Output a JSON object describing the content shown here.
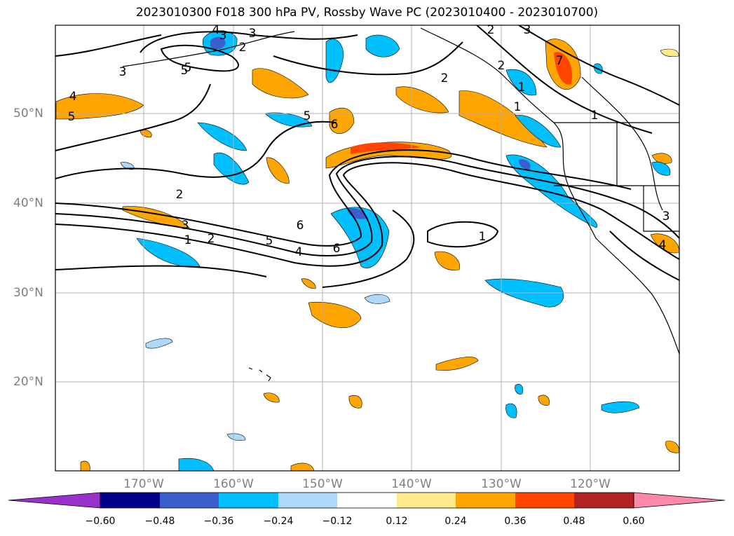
{
  "title": "2023010300 F018 300 hPa PV, Rossby Wave PC (2023010400 - 2023010700)",
  "map": {
    "lat_labels": [
      "50°N",
      "40°N",
      "30°N",
      "20°N"
    ],
    "lon_labels": [
      "170°W",
      "160°W",
      "150°W",
      "140°W",
      "130°W",
      "120°W"
    ],
    "contour_labels": [
      "2",
      "3",
      "4",
      "5",
      "5",
      "6",
      "2",
      "2",
      "1",
      "5",
      "3",
      "1",
      "2",
      "5",
      "4",
      "6",
      "6",
      "2",
      "1",
      "3",
      "3",
      "4",
      "5",
      "3",
      "4",
      "1",
      "2",
      "7",
      "1",
      "3"
    ]
  },
  "colorbar": {
    "colors": [
      "#9932cc",
      "#00008b",
      "#3a5fcd",
      "#00bfff",
      "#add8f8",
      "#ffffff",
      "#ffeb8c",
      "#ffa500",
      "#ff4500",
      "#b22222",
      "#ff88aa"
    ],
    "tick_labels": [
      "−0.60",
      "−0.48",
      "−0.36",
      "−0.24",
      "−0.12",
      "0.12",
      "0.24",
      "0.36",
      "0.48",
      "0.60"
    ]
  },
  "colors": {
    "light_blue": "#add8f8",
    "blue": "#00bfff",
    "mid_blue": "#3a5fcd",
    "yellow": "#ffeb8c",
    "orange": "#ffa500",
    "red_orange": "#ff4500"
  }
}
